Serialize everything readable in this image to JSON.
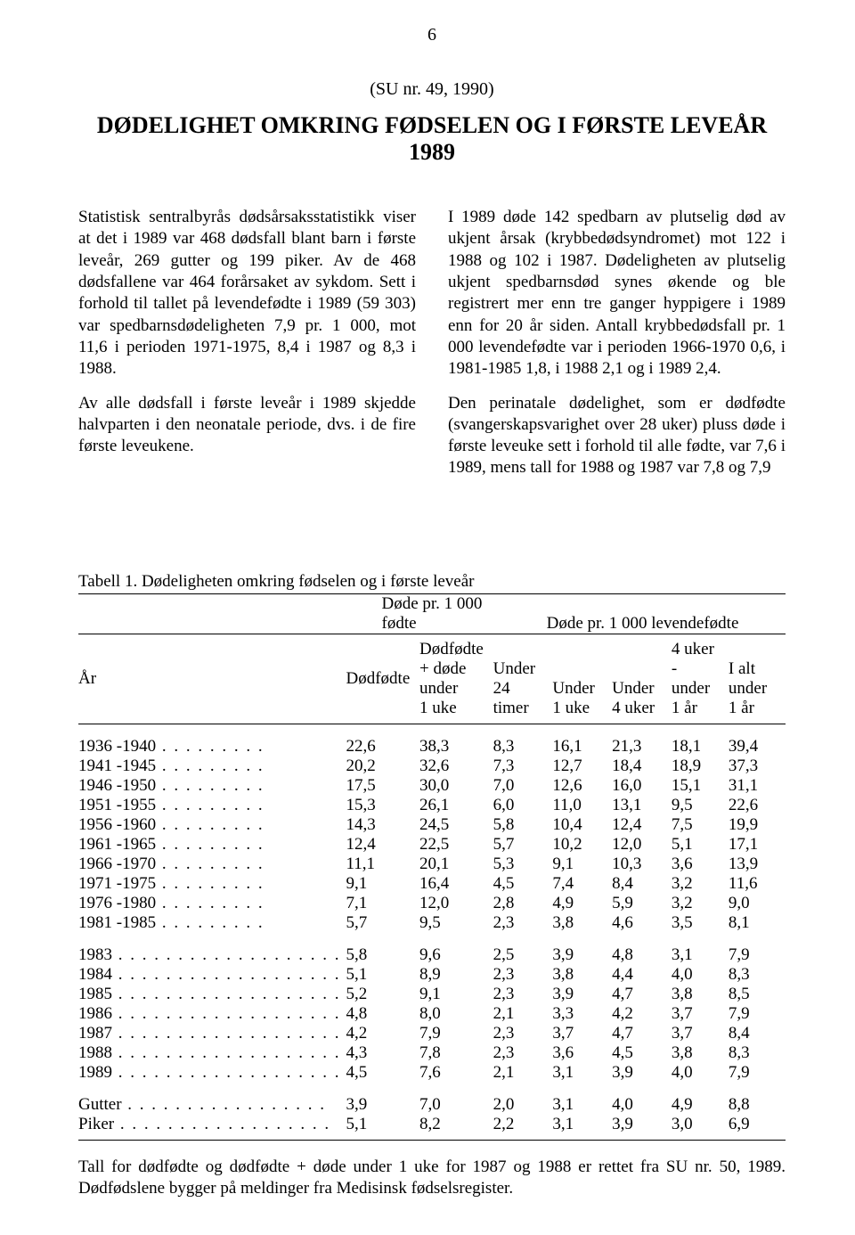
{
  "page_number": "6",
  "su_ref": "(SU nr. 49, 1990)",
  "title": "DØDELIGHET OMKRING FØDSELEN OG I FØRSTE LEVEÅR 1989",
  "left_paragraphs": [
    "Statistisk sentralbyrås dødsårsaksstatistikk viser at det i 1989 var 468 dødsfall blant barn i første leveår, 269 gutter og 199 piker. Av de 468 dødsfallene var 464 forårsaket av sykdom. Sett i forhold til tallet på levendefødte i 1989 (59 303) var spedbarnsdødeligheten 7,9 pr. 1 000, mot 11,6 i perioden 1971-1975, 8,4 i 1987 og 8,3 i 1988.",
    "Av alle dødsfall i første leveår i 1989 skjedde halvparten i den neonatale periode, dvs. i de fire første leveukene."
  ],
  "right_paragraphs": [
    "I 1989 døde 142 spedbarn av plutselig død av ukjent årsak (krybbedødsyndromet) mot 122 i 1988 og 102 i 1987. Dødeligheten av plutselig ukjent spedbarnsdød synes økende og ble registrert mer enn tre ganger hyppigere i 1989 enn for 20 år siden. Antall krybbedødsfall pr. 1 000 levendefødte var i perioden 1966-1970 0,6, i 1981-1985 1,8, i 1988 2,1 og i 1989 2,4.",
    "Den perinatale dødelighet, som er dødfødte (svangerskapsvarighet over 28 uker) pluss døde i første leveuke sett i forhold til alle fødte, var 7,6 i 1989, mens tall for 1988 og 1987 var 7,8 og 7,9"
  ],
  "table_caption": "Tabell 1.  Dødeligheten omkring fødselen og i første leveår",
  "group_head_left": "Døde pr. 1 000 fødte",
  "group_head_right": "Døde pr. 1 000 levendefødte",
  "row_label": "År",
  "col_headers": [
    "Dødfødte",
    "Dødfødte\n+ døde\nunder\n1 uke",
    "Under\n24\ntimer",
    "Under\n1 uke",
    "Under\n4 uker",
    "4 uker -\nunder\n1 år",
    "I alt\nunder\n1 år"
  ],
  "block_a": [
    {
      "label": "1936 -1940",
      "v": [
        "22,6",
        "38,3",
        "8,3",
        "16,1",
        "21,3",
        "18,1",
        "39,4"
      ]
    },
    {
      "label": "1941 -1945",
      "v": [
        "20,2",
        "32,6",
        "7,3",
        "12,7",
        "18,4",
        "18,9",
        "37,3"
      ]
    },
    {
      "label": "1946 -1950",
      "v": [
        "17,5",
        "30,0",
        "7,0",
        "12,6",
        "16,0",
        "15,1",
        "31,1"
      ]
    },
    {
      "label": "1951 -1955",
      "v": [
        "15,3",
        "26,1",
        "6,0",
        "11,0",
        "13,1",
        "9,5",
        "22,6"
      ]
    },
    {
      "label": "1956 -1960",
      "v": [
        "14,3",
        "24,5",
        "5,8",
        "10,4",
        "12,4",
        "7,5",
        "19,9"
      ]
    },
    {
      "label": "1961 -1965",
      "v": [
        "12,4",
        "22,5",
        "5,7",
        "10,2",
        "12,0",
        "5,1",
        "17,1"
      ]
    },
    {
      "label": "1966 -1970",
      "v": [
        "11,1",
        "20,1",
        "5,3",
        "9,1",
        "10,3",
        "3,6",
        "13,9"
      ]
    },
    {
      "label": "1971 -1975",
      "v": [
        "9,1",
        "16,4",
        "4,5",
        "7,4",
        "8,4",
        "3,2",
        "11,6"
      ]
    },
    {
      "label": "1976 -1980",
      "v": [
        "7,1",
        "12,0",
        "2,8",
        "4,9",
        "5,9",
        "3,2",
        "9,0"
      ]
    },
    {
      "label": "1981 -1985",
      "v": [
        "5,7",
        "9,5",
        "2,3",
        "3,8",
        "4,6",
        "3,5",
        "8,1"
      ]
    }
  ],
  "block_b": [
    {
      "label": "1983",
      "v": [
        "5,8",
        "9,6",
        "2,5",
        "3,9",
        "4,8",
        "3,1",
        "7,9"
      ]
    },
    {
      "label": "1984",
      "v": [
        "5,1",
        "8,9",
        "2,3",
        "3,8",
        "4,4",
        "4,0",
        "8,3"
      ]
    },
    {
      "label": "1985",
      "v": [
        "5,2",
        "9,1",
        "2,3",
        "3,9",
        "4,7",
        "3,8",
        "8,5"
      ]
    },
    {
      "label": "1986",
      "v": [
        "4,8",
        "8,0",
        "2,1",
        "3,3",
        "4,2",
        "3,7",
        "7,9"
      ]
    },
    {
      "label": "1987",
      "v": [
        "4,2",
        "7,9",
        "2,3",
        "3,7",
        "4,7",
        "3,7",
        "8,4"
      ]
    },
    {
      "label": "1988",
      "v": [
        "4,3",
        "7,8",
        "2,3",
        "3,6",
        "4,5",
        "3,8",
        "8,3"
      ]
    },
    {
      "label": "1989",
      "v": [
        "4,5",
        "7,6",
        "2,1",
        "3,1",
        "3,9",
        "4,0",
        "7,9"
      ]
    }
  ],
  "block_c": [
    {
      "label": "Gutter",
      "v": [
        "3,9",
        "7,0",
        "2,0",
        "3,1",
        "4,0",
        "4,9",
        "8,8"
      ]
    },
    {
      "label": "Piker",
      "v": [
        "5,1",
        "8,2",
        "2,2",
        "3,1",
        "3,9",
        "3,0",
        "6,9"
      ]
    }
  ],
  "footnote": "Tall for dødfødte og dødfødte + døde under 1 uke for 1987 og 1988 er rettet fra SU nr. 50, 1989. Dødfødslene bygger på meldinger fra Medisinsk fødselsregister."
}
